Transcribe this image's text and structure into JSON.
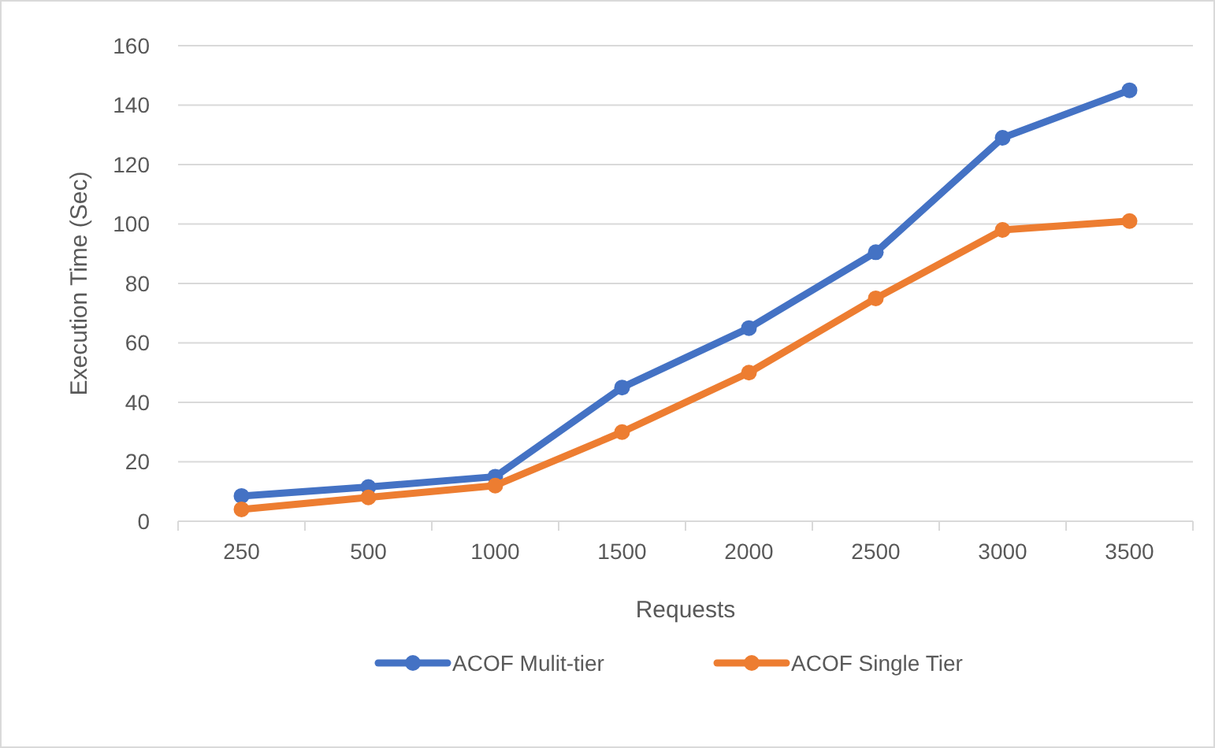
{
  "chart_data": {
    "type": "line",
    "xlabel": "Requests",
    "ylabel": "Execution Time (Sec)",
    "categories": [
      "250",
      "500",
      "1000",
      "1500",
      "2000",
      "2500",
      "3000",
      "3500"
    ],
    "series": [
      {
        "name": "ACOF Mulit-tier",
        "color": "#4472c4",
        "values": [
          8.5,
          11.5,
          15,
          45,
          65,
          90.5,
          129,
          145
        ]
      },
      {
        "name": "ACOF Single Tier",
        "color": "#ed7d31",
        "values": [
          4,
          8,
          12,
          30,
          50,
          75,
          98,
          101
        ]
      }
    ],
    "ylim": [
      0,
      160
    ],
    "yticks": [
      0,
      20,
      40,
      60,
      80,
      100,
      120,
      140,
      160
    ],
    "grid": "y",
    "legend": "bottom",
    "marker": "circle",
    "line_style": "solid"
  }
}
